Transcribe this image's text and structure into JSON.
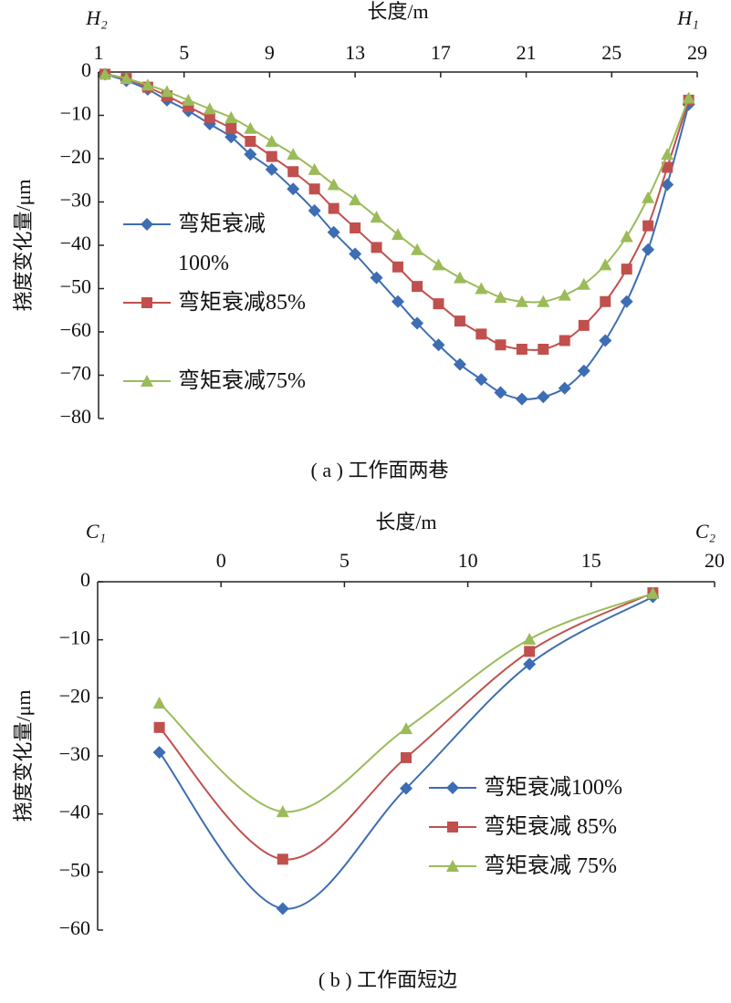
{
  "chart_data": [
    {
      "type": "line",
      "title": "长度/m",
      "y_label": "挠度变化量/μm",
      "caption": "( a ) 工作面两巷",
      "annotations": [
        "H₂",
        "H₁"
      ],
      "legend": "center left",
      "xaxis": "top",
      "x": [
        1.3,
        2.3,
        3.3,
        4.2,
        5.2,
        6.2,
        7.2,
        8.1,
        9.1,
        10.1,
        11.1,
        12.0,
        13.0,
        14.0,
        15.0,
        15.9,
        16.9,
        17.9,
        18.9,
        19.8,
        20.8,
        21.8,
        22.8,
        23.7,
        24.7,
        25.7,
        26.7,
        27.6,
        28.6
      ],
      "series": [
        {
          "name": "弯矩衰减100%",
          "color": "#3d6db3",
          "marker": "diamond",
          "values": [
            -0.5,
            -2,
            -4,
            -6.5,
            -9,
            -12,
            -15,
            -19,
            -22.5,
            -27,
            -32,
            -37,
            -42,
            -47.5,
            -53,
            -58,
            -63,
            -67.5,
            -71,
            -74,
            -75.5,
            -75,
            -73,
            -69,
            -62,
            -53,
            -41,
            -26,
            -7.5
          ]
        },
        {
          "name": "弯矩衰减85%",
          "color": "#c0504d",
          "marker": "square",
          "values": [
            -0.5,
            -1.5,
            -3.5,
            -5.5,
            -8,
            -10.5,
            -13,
            -16,
            -19.5,
            -23,
            -27,
            -31.5,
            -36,
            -40.5,
            -45,
            -49.5,
            -53.5,
            -57.5,
            -60.5,
            -63,
            -64,
            -64,
            -62,
            -58.5,
            -53,
            -45.5,
            -35.5,
            -22,
            -6.5
          ]
        },
        {
          "name": "弯矩衰减75%",
          "color": "#9bbb59",
          "marker": "triangle",
          "values": [
            -0.5,
            -1.5,
            -3,
            -4.5,
            -6.5,
            -8.5,
            -10.5,
            -13,
            -16,
            -19,
            -22.5,
            -26,
            -29.5,
            -33.5,
            -37.5,
            -41,
            -44.5,
            -47.5,
            -50,
            -52,
            -53,
            -53,
            -51.5,
            -49,
            -44.5,
            -38,
            -29,
            -19,
            -6
          ]
        }
      ],
      "xlim": [
        1,
        29
      ],
      "xticks": [
        1,
        5,
        9,
        13,
        17,
        21,
        25,
        29
      ],
      "ylim": [
        -80,
        0
      ],
      "yticks": [
        0,
        -10,
        -20,
        -30,
        -40,
        -50,
        -60,
        -70,
        -80
      ]
    },
    {
      "type": "line",
      "title": "长度/m",
      "y_label": "挠度变化量/μm",
      "caption": "( b ) 工作面短边",
      "annotations": [
        "C₁",
        "C₂"
      ],
      "legend": "lower right",
      "xaxis": "top",
      "x": [
        -2.5,
        2.5,
        7.5,
        12.5,
        17.5
      ],
      "series": [
        {
          "name": "弯矩衰减100%",
          "color": "#3d6db3",
          "marker": "diamond",
          "values": [
            -29.4,
            -56.3,
            -35.6,
            -14.2,
            -2.6
          ]
        },
        {
          "name": "弯矩衰减 85%",
          "color": "#c0504d",
          "marker": "square",
          "values": [
            -25.1,
            -47.8,
            -30.3,
            -12,
            -1.9
          ]
        },
        {
          "name": "弯矩衰减 75%",
          "color": "#9bbb59",
          "marker": "triangle",
          "values": [
            -20.9,
            -39.6,
            -25.3,
            -9.9,
            -2
          ]
        }
      ],
      "xlim": [
        -5,
        20
      ],
      "xticks": [
        0,
        5,
        10,
        15,
        20
      ],
      "ylim": [
        -60,
        0
      ],
      "yticks": [
        0,
        -10,
        -20,
        -30,
        -40,
        -50,
        -60
      ]
    }
  ]
}
